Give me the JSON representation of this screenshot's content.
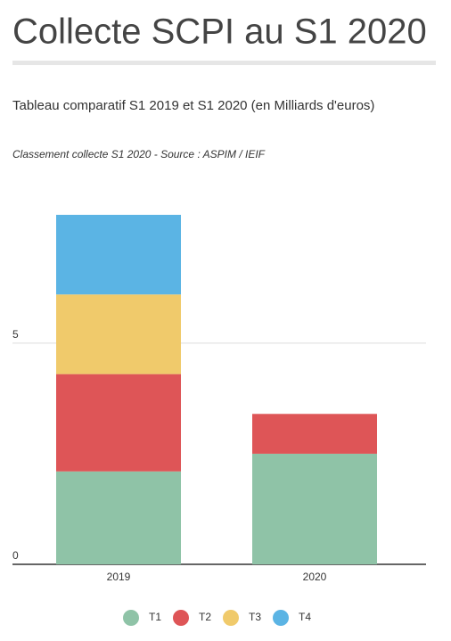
{
  "chart_data": {
    "type": "stacked_bar",
    "title": "Collecte SCPI au S1 2020",
    "subtitle": "Tableau comparatif S1 2019 et S1 2020 (en Milliards d'euros)",
    "source": "Classement collecte S1 2020 -  Source :  ASPIM / IEIF",
    "categories": [
      "2019",
      "2020"
    ],
    "series": [
      {
        "name": "T1",
        "color": "#8fc3a7",
        "values": [
          2.1,
          2.5
        ]
      },
      {
        "name": "T2",
        "color": "#de5557",
        "values": [
          2.2,
          0.9
        ]
      },
      {
        "name": "T3",
        "color": "#f0ca6b",
        "values": [
          1.8,
          0
        ]
      },
      {
        "name": "T4",
        "color": "#5bb4e4",
        "values": [
          1.8,
          0
        ]
      }
    ],
    "ylim": [
      0,
      8
    ],
    "yticks": [
      0,
      5
    ],
    "grid": true,
    "legend": "bottom"
  }
}
